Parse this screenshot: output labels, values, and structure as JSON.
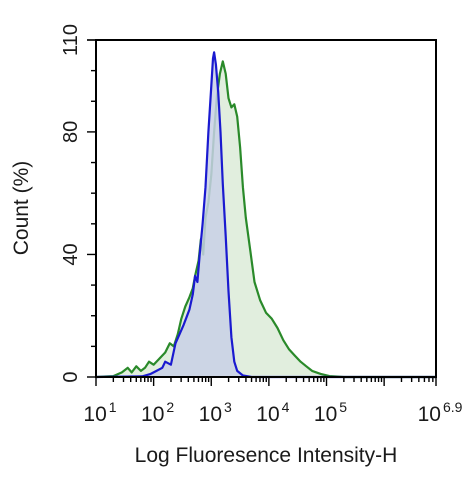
{
  "chart_data": {
    "type": "area",
    "title": "",
    "xlabel": "Log Fluoresence Intensity-H",
    "ylabel": "Count  (%)",
    "x_scale": "log10",
    "xlim": [
      1,
      6.9
    ],
    "ylim": [
      0,
      110
    ],
    "x_ticks": [
      {
        "base": "10",
        "exp": "1",
        "value": 1
      },
      {
        "base": "10",
        "exp": "2",
        "value": 2
      },
      {
        "base": "10",
        "exp": "3",
        "value": 3
      },
      {
        "base": "10",
        "exp": "4",
        "value": 4
      },
      {
        "base": "10",
        "exp": "5",
        "value": 5
      },
      {
        "base": "10",
        "exp": "6.9",
        "value": 6.9
      }
    ],
    "y_ticks": [
      {
        "label": "0",
        "value": 0
      },
      {
        "label": "40",
        "value": 40
      },
      {
        "label": "80",
        "value": 80
      },
      {
        "label": "110",
        "value": 110
      }
    ],
    "grid": false,
    "legend": "none",
    "series": [
      {
        "line_color": "#2a8a2a",
        "fill_color": "#dcebd8",
        "points": [
          [
            1.0,
            0
          ],
          [
            1.3,
            0.3
          ],
          [
            1.45,
            1.5
          ],
          [
            1.55,
            3
          ],
          [
            1.62,
            1.5
          ],
          [
            1.7,
            3.5
          ],
          [
            1.78,
            2
          ],
          [
            1.85,
            3
          ],
          [
            1.92,
            5
          ],
          [
            2.0,
            4
          ],
          [
            2.1,
            6
          ],
          [
            2.2,
            8
          ],
          [
            2.28,
            11
          ],
          [
            2.35,
            10
          ],
          [
            2.42,
            14
          ],
          [
            2.48,
            19
          ],
          [
            2.55,
            23
          ],
          [
            2.62,
            26
          ],
          [
            2.68,
            29
          ],
          [
            2.72,
            33
          ],
          [
            2.78,
            38
          ],
          [
            2.82,
            45
          ],
          [
            2.86,
            40
          ],
          [
            2.9,
            52
          ],
          [
            2.95,
            57
          ],
          [
            3.0,
            66
          ],
          [
            3.05,
            80
          ],
          [
            3.1,
            92
          ],
          [
            3.15,
            99
          ],
          [
            3.2,
            103
          ],
          [
            3.25,
            99
          ],
          [
            3.3,
            91
          ],
          [
            3.35,
            88
          ],
          [
            3.4,
            89
          ],
          [
            3.45,
            85
          ],
          [
            3.5,
            75
          ],
          [
            3.55,
            62
          ],
          [
            3.6,
            52
          ],
          [
            3.68,
            41
          ],
          [
            3.75,
            31
          ],
          [
            3.85,
            25
          ],
          [
            3.95,
            21
          ],
          [
            4.05,
            19
          ],
          [
            4.15,
            16
          ],
          [
            4.25,
            12
          ],
          [
            4.35,
            9
          ],
          [
            4.45,
            7
          ],
          [
            4.55,
            5
          ],
          [
            4.65,
            3.5
          ],
          [
            4.75,
            2
          ],
          [
            4.9,
            1
          ],
          [
            5.05,
            0.3
          ],
          [
            5.3,
            0
          ],
          [
            6.9,
            0
          ]
        ]
      },
      {
        "line_color": "#1a1ad0",
        "fill_color": "#c8d0e6",
        "points": [
          [
            1.0,
            0
          ],
          [
            1.8,
            0.2
          ],
          [
            1.95,
            1
          ],
          [
            2.05,
            2
          ],
          [
            2.15,
            3
          ],
          [
            2.2,
            5
          ],
          [
            2.3,
            4
          ],
          [
            2.38,
            11
          ],
          [
            2.45,
            14
          ],
          [
            2.52,
            17
          ],
          [
            2.58,
            20
          ],
          [
            2.62,
            22
          ],
          [
            2.68,
            27
          ],
          [
            2.72,
            33
          ],
          [
            2.76,
            31
          ],
          [
            2.8,
            40
          ],
          [
            2.85,
            50
          ],
          [
            2.9,
            62
          ],
          [
            2.95,
            80
          ],
          [
            3.0,
            95
          ],
          [
            3.03,
            104
          ],
          [
            3.05,
            106
          ],
          [
            3.08,
            102
          ],
          [
            3.12,
            93
          ],
          [
            3.16,
            80
          ],
          [
            3.2,
            63
          ],
          [
            3.25,
            46
          ],
          [
            3.3,
            28
          ],
          [
            3.35,
            13
          ],
          [
            3.4,
            5
          ],
          [
            3.45,
            2
          ],
          [
            3.55,
            0.5
          ],
          [
            3.7,
            0
          ],
          [
            6.9,
            0
          ]
        ]
      }
    ]
  }
}
